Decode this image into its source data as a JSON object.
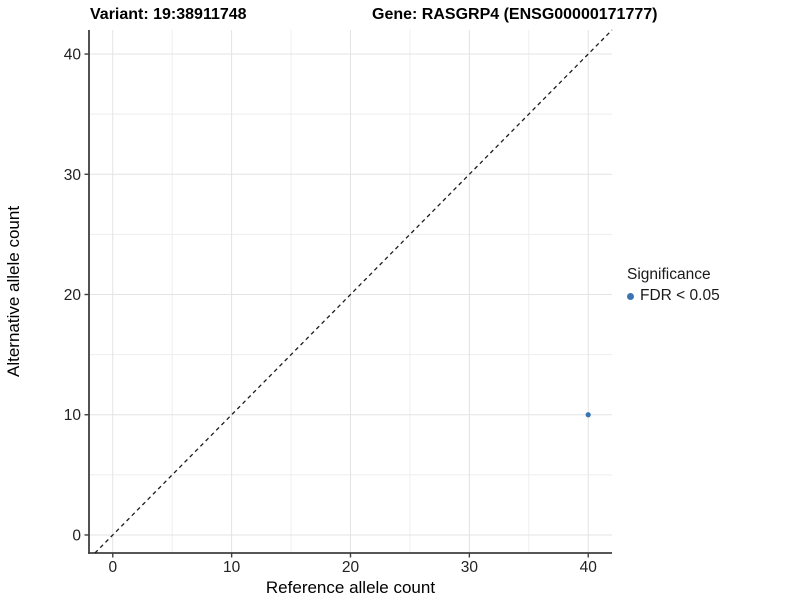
{
  "figure": {
    "title_variant": "Variant: 19:38911748",
    "title_gene": "Gene: RASGRP4 (ENSG00000171777)"
  },
  "axes": {
    "x_label": "Reference allele count",
    "y_label": "Alternative allele count"
  },
  "legend": {
    "title": "Significance",
    "items": [
      {
        "label": "FDR < 0.05",
        "color": "#3a75b2",
        "marker": "circle-icon"
      }
    ]
  },
  "chart_data": {
    "type": "scatter",
    "title": "Variant: 19:38911748 | Gene: RASGRP4 (ENSG00000171777)",
    "xlabel": "Reference allele count",
    "ylabel": "Alternative allele count",
    "xlim": [
      -2,
      42
    ],
    "ylim": [
      -1.5,
      42
    ],
    "x_major_ticks": [
      0,
      10,
      20,
      30,
      40
    ],
    "y_major_ticks": [
      0,
      10,
      20,
      30,
      40
    ],
    "x_minor_ticks": [
      5,
      15,
      25,
      35
    ],
    "y_minor_ticks": [
      5,
      15,
      25,
      35
    ],
    "grid": "major and minor, light gray on white",
    "legend_position": "right, vertically centered",
    "series": [
      {
        "name": "FDR < 0.05",
        "color": "#3a75b2",
        "marker": "circle",
        "points": [
          {
            "x": 40,
            "y": 10
          }
        ]
      }
    ],
    "reference_line": {
      "kind": "identity y=x",
      "from": [
        -1.5,
        -1.5
      ],
      "to": [
        42,
        42
      ],
      "style": "dashed",
      "color": "#1c1c1c"
    }
  },
  "style": {
    "background": "#ffffff",
    "grid_major_color": "#e3e3e3",
    "grid_minor_color": "#eeeeee",
    "axis_line_color": "#3f3f3f",
    "tick_label_color": "#222222",
    "dashed_line_color": "#1c1c1c",
    "point_color": "#3a75b2"
  }
}
